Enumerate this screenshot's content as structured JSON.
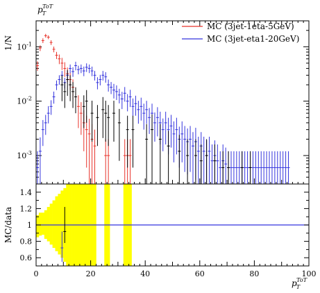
{
  "chart_data": {
    "type": "scatter",
    "title": "p_T^{ToT}",
    "xlabel": "p_T^{ToT}",
    "ylabel": "1/N",
    "ratio_ylabel": "MC/data",
    "xlim": [
      0,
      100
    ],
    "ylim": [
      0.0003,
      0.3
    ],
    "yscale": "log",
    "ratio_ylim": [
      0.5,
      1.5
    ],
    "x_ticks": [
      0,
      20,
      40,
      60,
      80,
      100
    ],
    "y_tick_labels": [
      "10^{-3}",
      "10^{-2}",
      "10^{-1}"
    ],
    "y_tick_values": [
      0.001,
      0.01,
      0.1
    ],
    "ratio_ticks": [
      0.6,
      0.8,
      1,
      1.2,
      1.4
    ],
    "legend_position": "top-right",
    "grid": false,
    "series": [
      {
        "name": "MC (3jet-1eta-5GeV)",
        "color": "#e8332b",
        "x": [
          0.5,
          1.5,
          2.5,
          3.5,
          4.5,
          5.5,
          6.5,
          7.5,
          8.5,
          9.5,
          10.5,
          11.5,
          12.5,
          13.5,
          14.5,
          15.5,
          16.5,
          17.5,
          18.5,
          19.5,
          20.5,
          21.5,
          25.5,
          26.5,
          32.5,
          33.5,
          34.5
        ],
        "y": [
          0.045,
          0.095,
          0.13,
          0.16,
          0.15,
          0.12,
          0.09,
          0.07,
          0.06,
          0.05,
          0.04,
          0.032,
          0.025,
          0.018,
          0.012,
          0.008,
          0.006,
          0.004,
          0.003,
          0.0025,
          0.002,
          0.0015,
          0.001,
          0.001,
          0.001,
          0.001,
          0.001
        ],
        "err": [
          0.2,
          0.12,
          0.1,
          0.08,
          0.08,
          0.1,
          0.12,
          0.15,
          0.2,
          0.25,
          0.3,
          0.3,
          0.35,
          0.4,
          0.5,
          0.6,
          0.6,
          0.7,
          0.8,
          0.9,
          0.9,
          1,
          1,
          1,
          1,
          1,
          1
        ]
      },
      {
        "name": "MC (3jet-eta1-20GeV)",
        "color": "#3333dd",
        "x": [
          0.5,
          1.5,
          2.5,
          3.5,
          4.5,
          5.5,
          6.5,
          7.5,
          8.5,
          9.5,
          10.5,
          11.5,
          12.5,
          13.5,
          14.5,
          15.5,
          16.5,
          17.5,
          18.5,
          19.5,
          20.5,
          21.5,
          22.5,
          23.5,
          24.5,
          25.5,
          26.5,
          27.5,
          28.5,
          29.5,
          30.5,
          31.5,
          32.5,
          33.5,
          34.5,
          35.5,
          36.5,
          37.5,
          38.5,
          39.5,
          40.5,
          41.5,
          42.5,
          43.5,
          44.5,
          45.5,
          46.5,
          47.5,
          48.5,
          49.5,
          50.5,
          51.5,
          52.5,
          53.5,
          54.5,
          55.5,
          56.5,
          57.5,
          58.5,
          59.5,
          60.5,
          61.5,
          62.5,
          63.5,
          64.5,
          65.5,
          66.5,
          67.5,
          68.5,
          69.5,
          70.5,
          71.5,
          72.5,
          73.5,
          74.5,
          75.5,
          76.5,
          77.5,
          78.5,
          79.5,
          80.5,
          81.5,
          82.5,
          83.5,
          84.5,
          85.5,
          86.5,
          87.5,
          88.5,
          89.5,
          90.5,
          91.5,
          92.5
        ],
        "y": [
          0.0006,
          0.0012,
          0.003,
          0.004,
          0.006,
          0.008,
          0.012,
          0.02,
          0.025,
          0.03,
          0.022,
          0.03,
          0.04,
          0.035,
          0.045,
          0.038,
          0.04,
          0.036,
          0.042,
          0.04,
          0.036,
          0.03,
          0.022,
          0.025,
          0.03,
          0.028,
          0.02,
          0.018,
          0.016,
          0.015,
          0.013,
          0.011,
          0.014,
          0.01,
          0.012,
          0.008,
          0.009,
          0.007,
          0.008,
          0.006,
          0.007,
          0.005,
          0.006,
          0.004,
          0.005,
          0.004,
          0.003,
          0.004,
          0.003,
          0.0035,
          0.0025,
          0.003,
          0.002,
          0.0025,
          0.002,
          0.0018,
          0.002,
          0.0015,
          0.0018,
          0.0012,
          0.0015,
          0.0012,
          0.001,
          0.0012,
          0.0008,
          0.001,
          0.0008,
          0.0006,
          0.0008,
          0.0007,
          0.0006,
          0.0006,
          0.0006,
          0.0006,
          0.0006,
          0.0006,
          0.0006,
          0.0006,
          0.0006,
          0.0006,
          0.0006,
          0.0006,
          0.0006,
          0.0006,
          0.0006,
          0.0006,
          0.0006,
          0.0006,
          0.0006,
          0.0006,
          0.0006,
          0.0006,
          0.0006
        ],
        "err": [
          1,
          0.8,
          0.5,
          0.4,
          0.35,
          0.3,
          0.25,
          0.2,
          0.2,
          0.2,
          0.22,
          0.2,
          0.18,
          0.2,
          0.18,
          0.18,
          0.18,
          0.2,
          0.18,
          0.18,
          0.2,
          0.2,
          0.25,
          0.22,
          0.2,
          0.22,
          0.25,
          0.25,
          0.3,
          0.3,
          0.3,
          0.35,
          0.3,
          0.35,
          0.35,
          0.4,
          0.4,
          0.45,
          0.45,
          0.5,
          0.45,
          0.5,
          0.5,
          0.55,
          0.55,
          0.6,
          0.6,
          0.6,
          0.65,
          0.6,
          0.7,
          0.65,
          0.7,
          0.7,
          0.75,
          0.75,
          0.75,
          0.8,
          0.8,
          0.85,
          0.8,
          0.85,
          0.9,
          0.85,
          1,
          0.9,
          1,
          1,
          1,
          1,
          1,
          1,
          1,
          1,
          1,
          1,
          1,
          1,
          1,
          1,
          1,
          1,
          1,
          1,
          1,
          1,
          1,
          1,
          1,
          1,
          1,
          1,
          1
        ]
      },
      {
        "name": "",
        "color": "#000000",
        "x": [
          9.5,
          10.5,
          11.5,
          12.5,
          13.5,
          14.5,
          17.5,
          18.5,
          20.5,
          22.5,
          24.5,
          25.5,
          26.5,
          28.5,
          30.5,
          33.5,
          35.5,
          40.5,
          42.5,
          45.5,
          48.5,
          52.5,
          55.5,
          58.5,
          60.5,
          62.5,
          65.5,
          68.5,
          70.5,
          75.5,
          78.5
        ],
        "y": [
          0.02,
          0.015,
          0.025,
          0.02,
          0.015,
          0.012,
          0.008,
          0.01,
          0.006,
          0.005,
          0.007,
          0.006,
          0.005,
          0.006,
          0.004,
          0.003,
          0.003,
          0.002,
          0.003,
          0.002,
          0.0015,
          0.0012,
          0.001,
          0.001,
          0.0008,
          0.001,
          0.0008,
          0.0006,
          0.0006,
          0.0006,
          0.0006
        ],
        "err": [
          0.5,
          0.5,
          0.5,
          0.5,
          0.5,
          0.5,
          0.6,
          0.6,
          0.7,
          0.7,
          0.7,
          0.7,
          0.7,
          0.7,
          0.8,
          0.8,
          0.8,
          0.9,
          0.9,
          0.9,
          0.9,
          1,
          1,
          1,
          1,
          1,
          1,
          1,
          1,
          1,
          1
        ]
      }
    ],
    "ratio_band": {
      "color": "#ffff00",
      "x": [
        0.5,
        1.5,
        2.5,
        3.5,
        4.5,
        5.5,
        6.5,
        7.5,
        8.5,
        9.5,
        10.5,
        11.5,
        12.5,
        13.5,
        14.5,
        15.5,
        16.5,
        17.5,
        18.5,
        19.5,
        20.5,
        21.5,
        25.5,
        26.5,
        32.5,
        33.5,
        34.5
      ],
      "lo": [
        0.85,
        0.87,
        0.88,
        0.83,
        0.8,
        0.76,
        0.72,
        0.68,
        0.64,
        0.6,
        0.55,
        0.5,
        0.5,
        0.5,
        0.5,
        0.5,
        0.5,
        0.5,
        0.5,
        0.5,
        0.5,
        0.5,
        0.5,
        0.5,
        0.5,
        0.5,
        0.5
      ],
      "hi": [
        1.12,
        1.15,
        1.15,
        1.18,
        1.22,
        1.26,
        1.3,
        1.35,
        1.38,
        1.42,
        1.45,
        1.5,
        1.5,
        1.5,
        1.5,
        1.5,
        1.5,
        1.5,
        1.5,
        1.5,
        1.5,
        1.5,
        1.5,
        1.5,
        1.5,
        1.5,
        1.5
      ]
    },
    "ratio_points": [
      {
        "x": 9.5,
        "y": 0.72,
        "lo": 0.55,
        "hi": 0.92,
        "color": "#3333dd"
      },
      {
        "x": 10.5,
        "y": 0.92,
        "lo": 0.78,
        "hi": 1.22,
        "color": "#000000"
      }
    ]
  }
}
